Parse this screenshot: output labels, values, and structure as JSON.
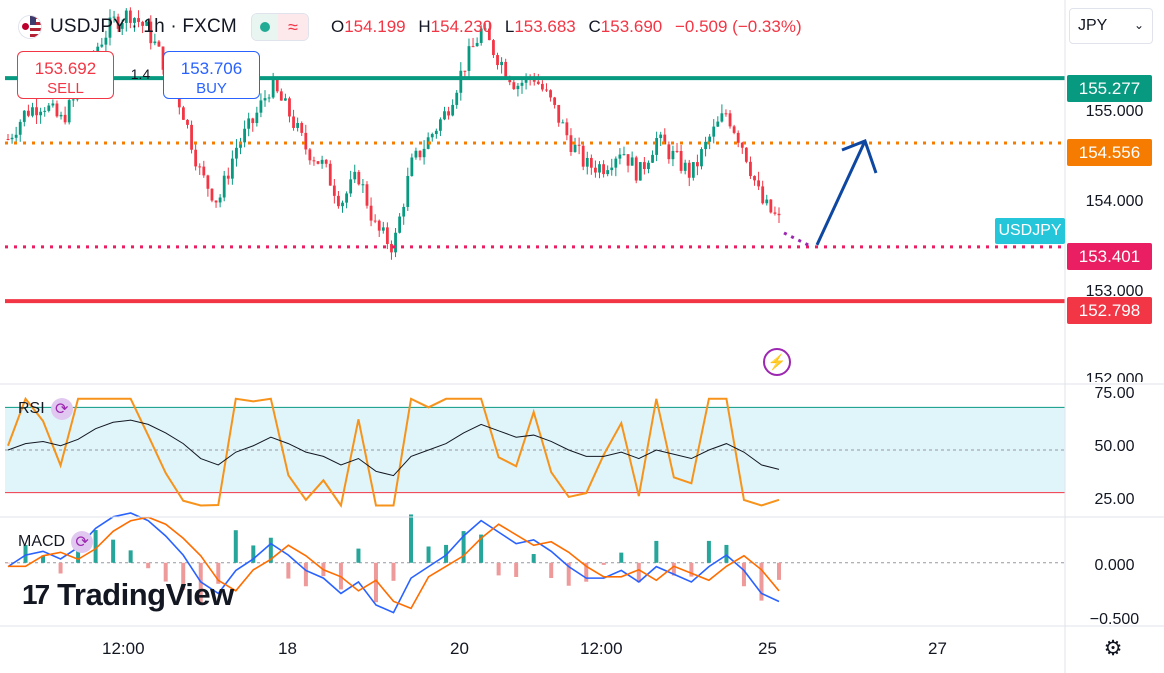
{
  "header": {
    "symbol": "USDJPY · 1h · FXCM",
    "ohlc": {
      "o_key": "O",
      "o": "154.199",
      "h_key": "H",
      "h": "154.230",
      "l_key": "L",
      "l": "153.683",
      "c_key": "C",
      "c": "153.690",
      "change": "−0.509 (−0.33%)"
    }
  },
  "trade": {
    "sell_price": "153.692",
    "sell_label": "SELL",
    "spread": "1.4",
    "buy_price": "153.706",
    "buy_label": "BUY"
  },
  "currency_select": "JPY",
  "symbol_tag": "USDJPY",
  "price_labels": {
    "p155277": "155.277",
    "p154556": "154.556",
    "p153401": "153.401",
    "p152798": "152.798"
  },
  "y_ticks": [
    "155.000",
    "154.000",
    "153.000",
    "152.000"
  ],
  "x_ticks": [
    "12:00",
    "18",
    "20",
    "12:00",
    "25",
    "27"
  ],
  "indicators": {
    "rsi_label": "RSI",
    "rsi_ticks": [
      "75.00",
      "50.00",
      "25.00"
    ],
    "macd_label": "MACD",
    "macd_ticks": [
      "0.000",
      "−0.500"
    ]
  },
  "brand": "TradingView",
  "colors": {
    "up": "#089981",
    "down": "#f23645",
    "level_155277": "#089981",
    "level_154556": "#f57c00",
    "level_153401": "#e91e63",
    "level_152798": "#f23645",
    "arrow": "#0d47a1",
    "rsi_line": "#f7931a",
    "rsi_band": "#dff5f9",
    "macd_line": "#2962ff",
    "signal_line": "#ff6d00"
  },
  "chart_data": {
    "type": "candlestick",
    "instrument": "USDJPY",
    "timeframe": "1h",
    "ylim": [
      151.9,
      156.1
    ],
    "levels": [
      {
        "value": 155.277,
        "color": "#089981",
        "style": "solid"
      },
      {
        "value": 154.556,
        "color": "#f57c00",
        "style": "dotted"
      },
      {
        "value": 153.401,
        "color": "#e91e63",
        "style": "dotted"
      },
      {
        "value": 152.798,
        "color": "#f23645",
        "style": "solid"
      }
    ],
    "x_labels": [
      "12:00",
      "18",
      "20",
      "12:00",
      "25",
      "27"
    ],
    "close_path": [
      154.6,
      154.9,
      155.0,
      154.8,
      155.1,
      155.6,
      155.9,
      156.0,
      155.8,
      155.4,
      154.9,
      154.2,
      153.9,
      154.5,
      154.8,
      155.2,
      154.9,
      154.5,
      154.3,
      153.9,
      154.2,
      153.6,
      153.4,
      154.3,
      154.6,
      154.9,
      155.4,
      155.8,
      155.5,
      155.2,
      155.3,
      155.0,
      154.6,
      154.3,
      154.3,
      154.5,
      154.2,
      154.6,
      154.4,
      154.2,
      154.6,
      154.9,
      154.5,
      153.9,
      153.69
    ],
    "projection": {
      "from": 153.401,
      "to": 154.556
    },
    "rsi": {
      "ylim": [
        20,
        80
      ],
      "band": [
        30,
        70
      ],
      "mid": 50
    },
    "macd": {
      "ylim": [
        -0.55,
        0.4
      ]
    }
  }
}
